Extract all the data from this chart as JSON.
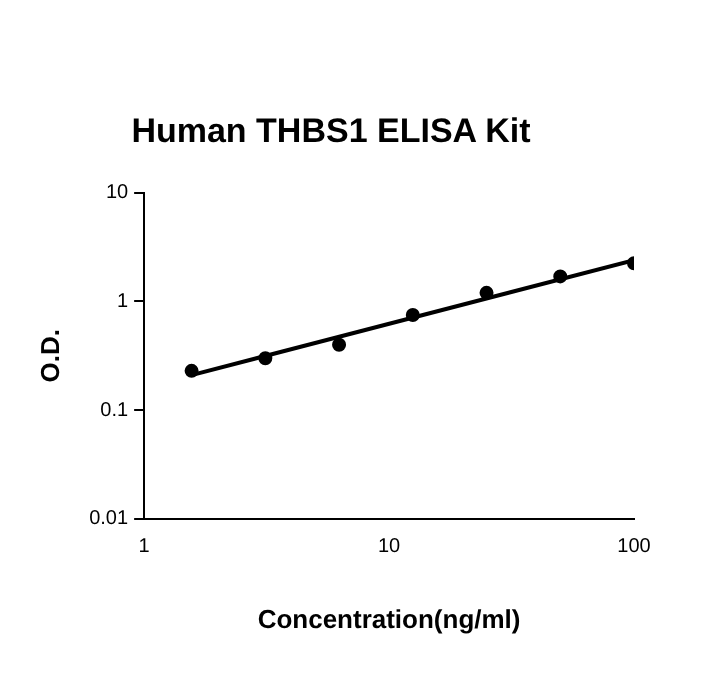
{
  "chart_data": {
    "type": "scatter",
    "title": "Human THBS1 ELISA Kit",
    "xlabel": "Concentration(ng/ml)",
    "ylabel": "O.D.",
    "log": "xy",
    "grid": false,
    "legend": false,
    "xlim": [
      1,
      100
    ],
    "ylim": [
      0.01,
      10
    ],
    "xticks": [
      1,
      10,
      100
    ],
    "yticks": [
      0.01,
      0.1,
      1,
      10
    ],
    "series": [
      {
        "color": "#000000",
        "marker": "circle",
        "x": [
          1.5625,
          3.125,
          6.25,
          12.5,
          25,
          50,
          100
        ],
        "values": [
          0.23,
          0.3,
          0.4,
          0.75,
          1.2,
          1.7,
          2.25
        ]
      },
      {
        "type": "line",
        "color": "#000000",
        "marker": "none",
        "x": [
          1.5625,
          100
        ],
        "values": [
          0.21,
          2.4
        ]
      }
    ]
  }
}
